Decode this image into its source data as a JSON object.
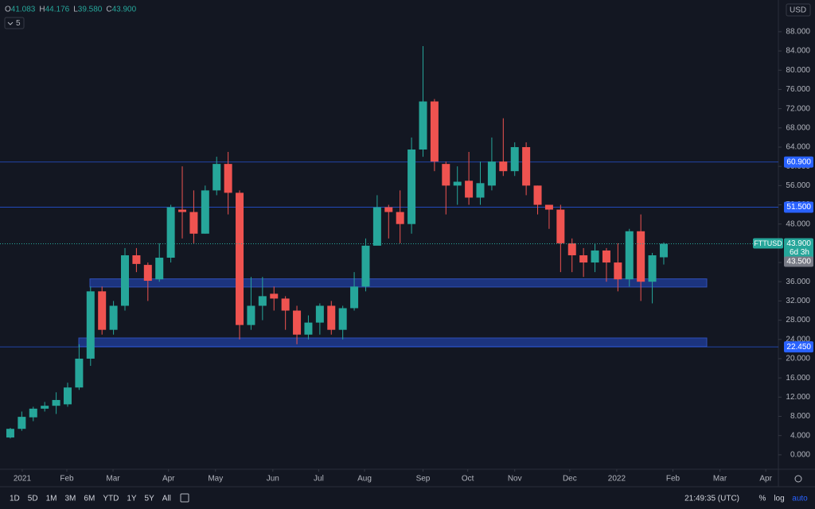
{
  "chart_data": {
    "type": "candlestick",
    "symbol": "FTTUSD",
    "currency": "USD",
    "up_color": "#26a69a",
    "down_color": "#ef5350",
    "open": [
      3.6,
      5.4,
      7.8,
      9.6,
      10.2,
      10.5,
      14.0,
      20.0,
      34.0,
      26.0,
      31.0,
      41.5,
      39.5,
      36.5,
      41.0,
      51.0,
      50.5,
      46.0,
      55.0,
      60.5,
      54.5,
      27.0,
      31.0,
      33.5,
      32.5,
      30.0,
      25.0,
      27.5,
      31.0,
      26.0,
      30.5,
      35.0,
      43.5,
      51.5,
      50.5,
      48.0,
      63.5,
      73.5,
      60.5,
      56.0,
      57.0,
      53.5,
      56.0,
      61.0,
      59.0,
      64.0,
      56.0,
      52.0,
      51.0,
      44.0,
      41.5,
      40.0,
      42.5,
      40.0,
      36.5,
      46.5,
      36.0,
      41.083
    ],
    "high": [
      5.6,
      9.0,
      10.0,
      11.0,
      13.0,
      15.0,
      23.0,
      35.0,
      35.0,
      32.0,
      43.0,
      43.0,
      40.0,
      44.0,
      52.0,
      60.0,
      55.0,
      56.0,
      62.0,
      63.0,
      55.0,
      37.0,
      37.0,
      35.0,
      33.0,
      31.0,
      29.0,
      31.5,
      32.0,
      31.0,
      38.0,
      45.0,
      54.0,
      52.0,
      55.0,
      66.0,
      85.0,
      74.0,
      61.0,
      60.0,
      63.0,
      61.0,
      66.0,
      70.0,
      65.0,
      65.0,
      56.0,
      52.0,
      52.0,
      45.0,
      43.0,
      44.0,
      43.0,
      44.0,
      47.0,
      50.0,
      42.0,
      44.176
    ],
    "low": [
      3.4,
      5.0,
      7.0,
      9.0,
      8.5,
      10.0,
      13.5,
      18.5,
      25.0,
      25.0,
      30.0,
      38.0,
      32.0,
      36.0,
      40.0,
      45.0,
      44.0,
      46.0,
      54.0,
      50.0,
      24.0,
      26.0,
      28.0,
      30.0,
      26.0,
      23.0,
      24.0,
      25.0,
      25.0,
      24.0,
      30.0,
      34.0,
      44.0,
      45.0,
      44.0,
      46.0,
      62.0,
      59.0,
      50.0,
      52.0,
      52.0,
      52.0,
      55.0,
      58.0,
      58.0,
      54.0,
      50.0,
      47.0,
      38.0,
      38.0,
      37.0,
      38.0,
      36.0,
      34.0,
      35.0,
      32.0,
      31.5,
      39.58
    ],
    "close": [
      5.4,
      7.9,
      9.6,
      10.2,
      11.4,
      14.0,
      20.0,
      34.0,
      26.0,
      31.0,
      41.5,
      39.7,
      36.2,
      41.0,
      51.5,
      50.5,
      46.0,
      55.0,
      60.5,
      54.5,
      27.0,
      31.0,
      33.0,
      32.5,
      30.0,
      25.0,
      27.5,
      31.0,
      26.0,
      30.5,
      35.0,
      43.5,
      51.5,
      50.5,
      48.0,
      63.5,
      73.5,
      61.0,
      56.0,
      56.8,
      53.5,
      56.5,
      61.0,
      59.0,
      64.0,
      56.0,
      52.0,
      51.0,
      44.0,
      41.5,
      40.0,
      42.5,
      40.0,
      36.5,
      46.5,
      36.0,
      41.5,
      43.9
    ],
    "xlim": [
      -0.9,
      67.0
    ],
    "xticks": [
      {
        "value": 1.04,
        "label": "2021"
      },
      {
        "value": 4.93,
        "label": "Feb"
      },
      {
        "value": 8.96,
        "label": "Mar"
      },
      {
        "value": 13.8,
        "label": "Apr"
      },
      {
        "value": 17.9,
        "label": "May"
      },
      {
        "value": 22.9,
        "label": "Jun"
      },
      {
        "value": 26.9,
        "label": "Jul"
      },
      {
        "value": 30.9,
        "label": "Aug"
      },
      {
        "value": 36.0,
        "label": "Sep"
      },
      {
        "value": 39.9,
        "label": "Oct"
      },
      {
        "value": 44.0,
        "label": "Nov"
      },
      {
        "value": 48.8,
        "label": "Dec"
      },
      {
        "value": 52.9,
        "label": "2022"
      },
      {
        "value": 57.8,
        "label": "Feb"
      },
      {
        "value": 61.9,
        "label": "Mar"
      },
      {
        "value": 65.9,
        "label": "Apr"
      }
    ],
    "ylim": [
      -3.0,
      94.6
    ],
    "yticks": [
      {
        "value": 0,
        "label": "0.000"
      },
      {
        "value": 4,
        "label": "4.000"
      },
      {
        "value": 8,
        "label": "8.000"
      },
      {
        "value": 12,
        "label": "12.000"
      },
      {
        "value": 16,
        "label": "16.000"
      },
      {
        "value": 20,
        "label": "20.000"
      },
      {
        "value": 24,
        "label": "24.000"
      },
      {
        "value": 28,
        "label": "28.000"
      },
      {
        "value": 32,
        "label": "32.000"
      },
      {
        "value": 36,
        "label": "36.000"
      },
      {
        "value": 40,
        "label": "40.000"
      },
      {
        "value": 44,
        "label": "44.000"
      },
      {
        "value": 48,
        "label": "48.000"
      },
      {
        "value": 52,
        "label": "52.000"
      },
      {
        "value": 56,
        "label": "56.000"
      },
      {
        "value": 60,
        "label": "60.000"
      },
      {
        "value": 64,
        "label": "64.000"
      },
      {
        "value": 68,
        "label": "68.000"
      },
      {
        "value": 72,
        "label": "72.000"
      },
      {
        "value": 76,
        "label": "76.000"
      },
      {
        "value": 80,
        "label": "80.000"
      },
      {
        "value": 84,
        "label": "84.000"
      },
      {
        "value": 88,
        "label": "88.000"
      }
    ],
    "levels": [
      {
        "value": 60.9,
        "label": "60.900"
      },
      {
        "value": 51.5,
        "label": "51.500"
      },
      {
        "value": 22.45,
        "label": "22.450"
      }
    ],
    "zones": [
      {
        "from": 34.9,
        "to": 36.6
      },
      {
        "from": 22.5,
        "to": 24.3
      }
    ],
    "last_price": {
      "value": 43.9,
      "label": "43.900"
    },
    "countdown": "6d 3h",
    "second_price": "43.500"
  },
  "header": {
    "ohlc": [
      {
        "key": "O",
        "value": "41.083"
      },
      {
        "key": "H",
        "value": "44.176"
      },
      {
        "key": "L",
        "value": "39.580"
      },
      {
        "key": "C",
        "value": "43.900"
      }
    ],
    "indicators": "5"
  },
  "toolbar": {
    "ranges": [
      "1D",
      "5D",
      "1M",
      "3M",
      "6M",
      "YTD",
      "1Y",
      "5Y",
      "All"
    ],
    "clock": "21:49:35 (UTC)",
    "options": [
      "%",
      "log",
      "auto"
    ]
  }
}
